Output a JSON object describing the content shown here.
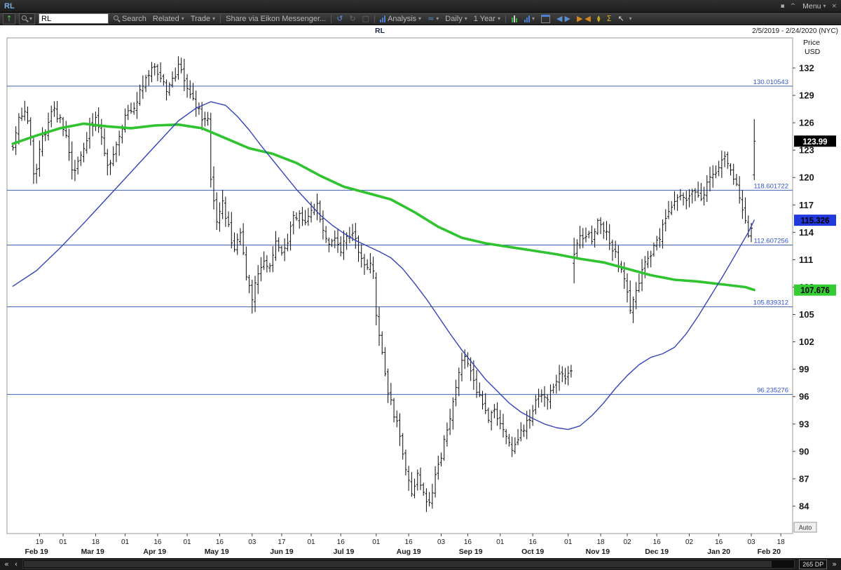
{
  "window": {
    "title": "RL",
    "menu_label": "Menu"
  },
  "toolbar": {
    "symbol_value": "RL",
    "search_label": "Search",
    "related_label": "Related",
    "trade_label": "Trade",
    "share_label": "Share via Eikon Messenger...",
    "analysis_label": "Analysis",
    "interval_label": "Daily",
    "range_label": "1 Year"
  },
  "statusbar": {
    "datapoints": "265 DP"
  },
  "icons": {
    "dropdown": "▾",
    "up_arrow": "↑",
    "undo": "↺",
    "redo": "↻",
    "waves": "≈",
    "left_triangle": "◀",
    "right_triangle": "▶",
    "up_triangle": "▲",
    "down_triangle": "▼",
    "sigma": "Σ",
    "cursor": "↖",
    "square": "□",
    "fast_left": "«",
    "left": "‹",
    "fast_right": "»",
    "close": "×",
    "caret": "^",
    "pin": "▪"
  },
  "chart_data": {
    "type": "ohlc-bar",
    "symbol": "RL",
    "title": "RL",
    "date_range": "2/5/2019 - 2/24/2020 (NYC)",
    "axis_title": [
      "Price",
      "USD"
    ],
    "auto_label": "Auto",
    "x_domain": [
      -2,
      264
    ],
    "y_domain": [
      81.0,
      135.3
    ],
    "y_ticks": [
      84,
      87,
      90,
      93,
      96,
      99,
      102,
      105,
      108,
      111,
      114,
      117,
      120,
      123,
      126,
      129,
      132
    ],
    "x_ticks": [
      {
        "day": 9,
        "label": "19"
      },
      {
        "day": 17,
        "label": "01"
      },
      {
        "day": 28,
        "label": "18"
      },
      {
        "day": 38,
        "label": "01"
      },
      {
        "day": 49,
        "label": "16"
      },
      {
        "day": 59,
        "label": "01"
      },
      {
        "day": 70,
        "label": "16"
      },
      {
        "day": 81,
        "label": "03"
      },
      {
        "day": 91,
        "label": "17"
      },
      {
        "day": 101,
        "label": "01"
      },
      {
        "day": 111,
        "label": "16"
      },
      {
        "day": 123,
        "label": "01"
      },
      {
        "day": 134,
        "label": "16"
      },
      {
        "day": 145,
        "label": "03"
      },
      {
        "day": 154,
        "label": "16"
      },
      {
        "day": 165,
        "label": "01"
      },
      {
        "day": 176,
        "label": "16"
      },
      {
        "day": 188,
        "label": "01"
      },
      {
        "day": 199,
        "label": "18"
      },
      {
        "day": 208,
        "label": "02"
      },
      {
        "day": 218,
        "label": "16"
      },
      {
        "day": 229,
        "label": "02"
      },
      {
        "day": 239,
        "label": "16"
      },
      {
        "day": 250,
        "label": "03"
      },
      {
        "day": 260,
        "label": "18"
      }
    ],
    "month_labels": [
      {
        "day": 8,
        "label": "Feb 19"
      },
      {
        "day": 27,
        "label": "Mar 19"
      },
      {
        "day": 48,
        "label": "Apr 19"
      },
      {
        "day": 69,
        "label": "May 19"
      },
      {
        "day": 91,
        "label": "Jun 19"
      },
      {
        "day": 112,
        "label": "Jul 19"
      },
      {
        "day": 134,
        "label": "Aug 19"
      },
      {
        "day": 155,
        "label": "Sep 19"
      },
      {
        "day": 176,
        "label": "Oct 19"
      },
      {
        "day": 198,
        "label": "Nov 19"
      },
      {
        "day": 218,
        "label": "Dec 19"
      },
      {
        "day": 239,
        "label": "Jan 20"
      },
      {
        "day": 256,
        "label": "Feb 20"
      }
    ],
    "pivot_lines": [
      {
        "value": 130.010543,
        "label": "130.010543"
      },
      {
        "value": 118.601722,
        "label": "118.601722"
      },
      {
        "value": 112.607256,
        "label": "112.607256"
      },
      {
        "value": 105.839312,
        "label": "105.839312"
      },
      {
        "value": 96.235276,
        "label": "96.235276"
      }
    ],
    "badges": [
      {
        "label": "123.99",
        "value": 123.99,
        "bg": "#000000",
        "fg": "#ffffff"
      },
      {
        "label": "115.326",
        "value": 115.326,
        "bg": "#2239e0",
        "fg": "#000000"
      },
      {
        "label": "107.676",
        "value": 107.676,
        "bg": "#33cc33",
        "fg": "#000000"
      }
    ],
    "seed": 12,
    "last_bar_day": 251,
    "close_anchors": [
      [
        0,
        123.5
      ],
      [
        2,
        126.5
      ],
      [
        4,
        127.2
      ],
      [
        6,
        124.6
      ],
      [
        7,
        120.4
      ],
      [
        8,
        121.2
      ],
      [
        10,
        124.2
      ],
      [
        12,
        126.2
      ],
      [
        14,
        127.6
      ],
      [
        16,
        126.2
      ],
      [
        18,
        124.6
      ],
      [
        20,
        120.8
      ],
      [
        22,
        121.6
      ],
      [
        24,
        123.4
      ],
      [
        26,
        125.4
      ],
      [
        28,
        126.4
      ],
      [
        30,
        124.6
      ],
      [
        32,
        121.6
      ],
      [
        34,
        122.2
      ],
      [
        36,
        124.2
      ],
      [
        38,
        126.4
      ],
      [
        40,
        127.4
      ],
      [
        42,
        128.4
      ],
      [
        44,
        130.2
      ],
      [
        46,
        131.6
      ],
      [
        48,
        132.4
      ],
      [
        50,
        130.8
      ],
      [
        52,
        129.4
      ],
      [
        54,
        130.6
      ],
      [
        56,
        132.2
      ],
      [
        58,
        130.8
      ],
      [
        60,
        129.2
      ],
      [
        62,
        128.0
      ],
      [
        64,
        126.6
      ],
      [
        66,
        126.8
      ],
      [
        67,
        119.8
      ],
      [
        68,
        117.2
      ],
      [
        69,
        115.6
      ],
      [
        71,
        117.2
      ],
      [
        73,
        114.4
      ],
      [
        75,
        112.2
      ],
      [
        77,
        113.8
      ],
      [
        79,
        109.4
      ],
      [
        80,
        108.2
      ],
      [
        81,
        106.6
      ],
      [
        83,
        109.6
      ],
      [
        85,
        111.2
      ],
      [
        87,
        110.2
      ],
      [
        89,
        112.6
      ],
      [
        91,
        111.4
      ],
      [
        93,
        113.2
      ],
      [
        95,
        115.4
      ],
      [
        97,
        116.4
      ],
      [
        99,
        114.8
      ],
      [
        101,
        116.2
      ],
      [
        103,
        116.8
      ],
      [
        105,
        114.4
      ],
      [
        107,
        112.4
      ],
      [
        109,
        113.6
      ],
      [
        111,
        112.2
      ],
      [
        113,
        113.2
      ],
      [
        115,
        114.2
      ],
      [
        117,
        111.6
      ],
      [
        119,
        110.2
      ],
      [
        121,
        110.8
      ],
      [
        122,
        109.4
      ],
      [
        123,
        104.9
      ],
      [
        125,
        100.4
      ],
      [
        127,
        96.8
      ],
      [
        129,
        94.2
      ],
      [
        131,
        91.6
      ],
      [
        133,
        88.2
      ],
      [
        135,
        85.6
      ],
      [
        137,
        87.6
      ],
      [
        139,
        85.2
      ],
      [
        141,
        84.6
      ],
      [
        143,
        87.2
      ],
      [
        145,
        89.6
      ],
      [
        147,
        92.2
      ],
      [
        149,
        95.6
      ],
      [
        151,
        98.6
      ],
      [
        153,
        100.6
      ],
      [
        155,
        99.2
      ],
      [
        157,
        96.6
      ],
      [
        159,
        95.2
      ],
      [
        161,
        93.8
      ],
      [
        163,
        94.6
      ],
      [
        165,
        93.4
      ],
      [
        167,
        91.4
      ],
      [
        169,
        90.2
      ],
      [
        171,
        91.2
      ],
      [
        173,
        92.6
      ],
      [
        175,
        93.8
      ],
      [
        177,
        95.2
      ],
      [
        179,
        96.4
      ],
      [
        181,
        95.4
      ],
      [
        183,
        97.4
      ],
      [
        185,
        98.8
      ],
      [
        187,
        97.8
      ],
      [
        189,
        99.2
      ],
      [
        190,
        111.6
      ],
      [
        192,
        113.2
      ],
      [
        194,
        113.8
      ],
      [
        196,
        113.2
      ],
      [
        198,
        115.0
      ],
      [
        200,
        114.6
      ],
      [
        202,
        113.2
      ],
      [
        204,
        111.6
      ],
      [
        206,
        109.8
      ],
      [
        208,
        107.2
      ],
      [
        209,
        105.8
      ],
      [
        211,
        107.6
      ],
      [
        213,
        109.6
      ],
      [
        215,
        111.2
      ],
      [
        217,
        112.2
      ],
      [
        219,
        113.6
      ],
      [
        221,
        115.4
      ],
      [
        223,
        116.8
      ],
      [
        225,
        118.2
      ],
      [
        227,
        118.0
      ],
      [
        229,
        117.6
      ],
      [
        231,
        118.6
      ],
      [
        233,
        117.2
      ],
      [
        235,
        119.2
      ],
      [
        237,
        120.2
      ],
      [
        239,
        121.2
      ],
      [
        241,
        122.2
      ],
      [
        243,
        121.0
      ],
      [
        245,
        119.4
      ],
      [
        247,
        116.8
      ],
      [
        249,
        113.6
      ],
      [
        250,
        114.8
      ],
      [
        251,
        123.99
      ]
    ],
    "bar_overrides": [
      {
        "day": 7,
        "open": 124.0,
        "high": 124.6,
        "low": 119.3,
        "close": 120.4
      },
      {
        "day": 67,
        "open": 126.4,
        "high": 127.1,
        "low": 118.9,
        "close": 119.8
      },
      {
        "day": 81,
        "open": 108.2,
        "high": 108.8,
        "low": 105.1,
        "close": 106.6
      },
      {
        "day": 123,
        "open": 109.0,
        "high": 109.6,
        "low": 103.8,
        "close": 104.9
      },
      {
        "day": 190,
        "open": 110.6,
        "high": 113.4,
        "low": 108.4,
        "close": 111.6
      },
      {
        "day": 251,
        "open": 120.3,
        "high": 126.4,
        "low": 119.7,
        "close": 123.99
      }
    ],
    "moving_averages": [
      {
        "name": "long-term-ma",
        "color": "#2fc32f",
        "width": 3.6,
        "points": [
          [
            0,
            123.7
          ],
          [
            8,
            124.6
          ],
          [
            16,
            125.4
          ],
          [
            24,
            125.9
          ],
          [
            32,
            125.6
          ],
          [
            40,
            125.4
          ],
          [
            48,
            125.7
          ],
          [
            56,
            125.8
          ],
          [
            64,
            125.4
          ],
          [
            72,
            124.3
          ],
          [
            80,
            123.2
          ],
          [
            88,
            122.6
          ],
          [
            96,
            121.6
          ],
          [
            104,
            120.2
          ],
          [
            112,
            119.0
          ],
          [
            120,
            118.3
          ],
          [
            128,
            117.6
          ],
          [
            136,
            116.2
          ],
          [
            144,
            114.6
          ],
          [
            152,
            113.4
          ],
          [
            160,
            112.8
          ],
          [
            168,
            112.4
          ],
          [
            176,
            112.0
          ],
          [
            184,
            111.6
          ],
          [
            192,
            111.1
          ],
          [
            200,
            110.7
          ],
          [
            208,
            110.0
          ],
          [
            216,
            109.3
          ],
          [
            224,
            108.8
          ],
          [
            232,
            108.6
          ],
          [
            240,
            108.3
          ],
          [
            248,
            108.0
          ],
          [
            251,
            107.68
          ]
        ]
      },
      {
        "name": "short-term-ma",
        "color": "#3344bb",
        "width": 1.4,
        "points": [
          [
            0,
            108.1
          ],
          [
            8,
            109.8
          ],
          [
            16,
            112.3
          ],
          [
            24,
            115.0
          ],
          [
            32,
            117.8
          ],
          [
            40,
            120.6
          ],
          [
            48,
            123.4
          ],
          [
            56,
            126.2
          ],
          [
            62,
            127.6
          ],
          [
            67,
            128.3
          ],
          [
            72,
            127.9
          ],
          [
            76,
            126.7
          ],
          [
            80,
            125.2
          ],
          [
            84,
            123.5
          ],
          [
            88,
            121.9
          ],
          [
            92,
            120.3
          ],
          [
            96,
            118.7
          ],
          [
            100,
            117.3
          ],
          [
            104,
            115.9
          ],
          [
            108,
            114.8
          ],
          [
            112,
            113.9
          ],
          [
            116,
            113.1
          ],
          [
            120,
            112.5
          ],
          [
            124,
            111.9
          ],
          [
            128,
            111.2
          ],
          [
            132,
            110.0
          ],
          [
            136,
            108.4
          ],
          [
            140,
            106.7
          ],
          [
            144,
            104.8
          ],
          [
            148,
            102.9
          ],
          [
            152,
            101.1
          ],
          [
            156,
            99.5
          ],
          [
            160,
            97.9
          ],
          [
            164,
            96.6
          ],
          [
            168,
            95.3
          ],
          [
            172,
            94.3
          ],
          [
            176,
            93.6
          ],
          [
            180,
            93.0
          ],
          [
            184,
            92.6
          ],
          [
            188,
            92.4
          ],
          [
            192,
            92.8
          ],
          [
            196,
            93.9
          ],
          [
            200,
            95.3
          ],
          [
            204,
            96.9
          ],
          [
            208,
            98.3
          ],
          [
            212,
            99.5
          ],
          [
            216,
            100.3
          ],
          [
            220,
            100.7
          ],
          [
            224,
            101.4
          ],
          [
            228,
            102.9
          ],
          [
            232,
            104.8
          ],
          [
            236,
            106.9
          ],
          [
            240,
            109.0
          ],
          [
            244,
            111.2
          ],
          [
            247,
            112.9
          ],
          [
            249,
            114.0
          ],
          [
            251,
            115.33
          ]
        ]
      }
    ],
    "colors": {
      "bar": "#0a0a0a",
      "pivot": "#4060b0",
      "pivot_label": "#3355cc",
      "axis_text": "#1a1a1a"
    }
  }
}
